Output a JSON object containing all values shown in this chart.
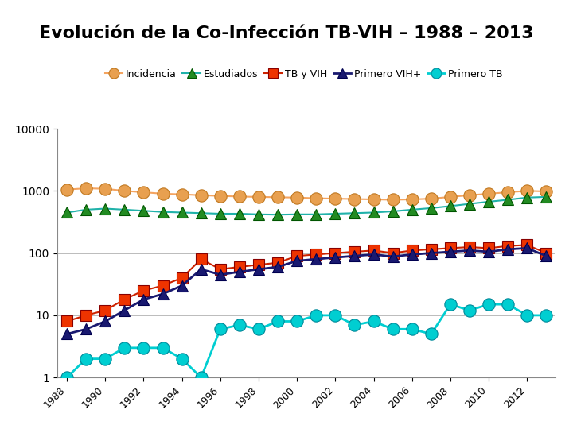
{
  "title": "Evolución de la Co-Infección TB-VIH – 1988 – 2013",
  "years": [
    1988,
    1989,
    1990,
    1991,
    1992,
    1993,
    1994,
    1995,
    1996,
    1997,
    1998,
    1999,
    2000,
    2001,
    2002,
    2003,
    2004,
    2005,
    2006,
    2007,
    2008,
    2009,
    2010,
    2011,
    2012,
    2013
  ],
  "incidencia": [
    1050,
    1100,
    1080,
    1000,
    950,
    900,
    880,
    850,
    830,
    810,
    800,
    790,
    780,
    760,
    750,
    740,
    730,
    720,
    730,
    750,
    800,
    850,
    900,
    950,
    1000,
    980
  ],
  "estudiados": [
    450,
    500,
    520,
    500,
    480,
    460,
    450,
    440,
    430,
    430,
    420,
    415,
    420,
    420,
    430,
    440,
    450,
    470,
    500,
    530,
    570,
    620,
    670,
    720,
    780,
    800
  ],
  "tb_vih": [
    8,
    10,
    12,
    18,
    25,
    30,
    40,
    80,
    55,
    60,
    65,
    70,
    90,
    95,
    100,
    105,
    110,
    100,
    110,
    115,
    120,
    125,
    120,
    130,
    135,
    100
  ],
  "primero_vih": [
    5,
    6,
    8,
    12,
    18,
    22,
    30,
    55,
    45,
    50,
    55,
    60,
    75,
    80,
    85,
    90,
    95,
    88,
    95,
    100,
    105,
    110,
    105,
    115,
    120,
    90
  ],
  "primero_tb": [
    1,
    2,
    2,
    3,
    3,
    3,
    2,
    1,
    6,
    7,
    6,
    8,
    8,
    10,
    10,
    7,
    8,
    6,
    6,
    5,
    15,
    12,
    15,
    15,
    10,
    10
  ],
  "incidencia_line_color": "#F4A460",
  "incidencia_marker_color": "#E8A050",
  "incidencia_edge_color": "#C07820",
  "estudiados_line_color": "#20B2AA",
  "estudiados_marker_color": "#228B22",
  "estudiados_edge_color": "#005500",
  "tb_vih_line_color": "#CC2200",
  "tb_vih_marker_color": "#EE3300",
  "tb_vih_edge_color": "#880000",
  "primero_vih_line_color": "#191970",
  "primero_vih_marker_color": "#191970",
  "primero_vih_edge_color": "#000050",
  "primero_tb_line_color": "#00CED1",
  "primero_tb_marker_color": "#00CED1",
  "primero_tb_edge_color": "#008899",
  "legend_labels": [
    "Incidencia",
    "Estudiados",
    "TB y VIH",
    "Primero VIH+",
    "Primero TB"
  ],
  "ylim": [
    1,
    10000
  ],
  "background_color": "#ffffff",
  "title_fontsize": 16,
  "legend_fontsize": 9
}
